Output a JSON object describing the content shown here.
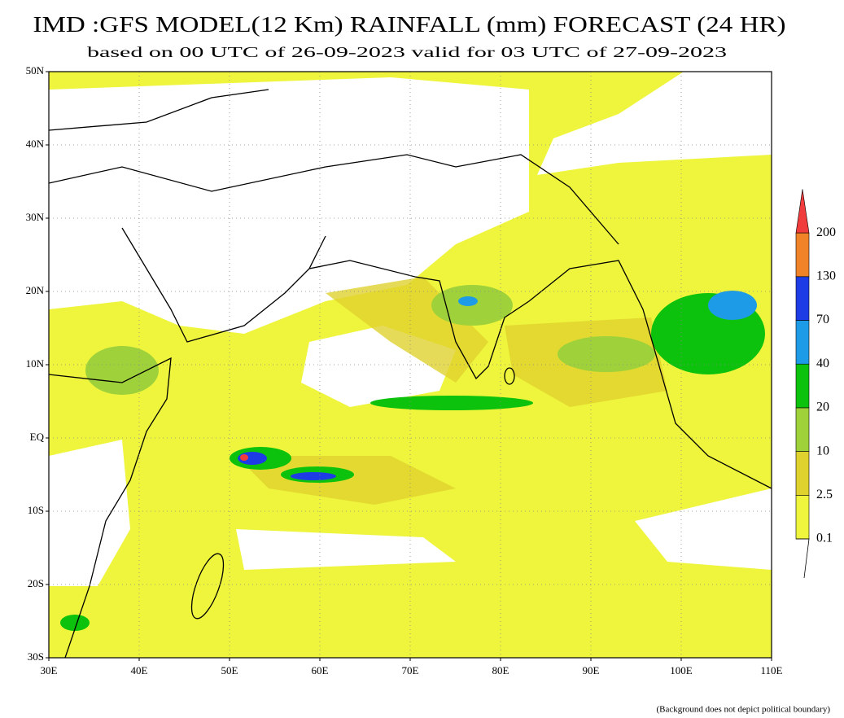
{
  "header": {
    "title": "IMD :GFS MODEL(12 Km) RAINFALL (mm) FORECAST (24 HR)",
    "subtitle": "based on 00 UTC of 26-09-2023 valid for 03 UTC of 27-09-2023"
  },
  "map": {
    "lat_labels": [
      "50N",
      "40N",
      "30N",
      "20N",
      "10N",
      "EQ",
      "10S",
      "20S",
      "30S"
    ],
    "lon_labels": [
      "30E",
      "40E",
      "50E",
      "60E",
      "70E",
      "80E",
      "90E",
      "100E",
      "110E"
    ]
  },
  "legend": {
    "levels": [
      0.1,
      2.5,
      10,
      20,
      40,
      70,
      130,
      200
    ],
    "colors": [
      "#eef53c",
      "#e0d22e",
      "#9fd23a",
      "#0cc20c",
      "#1e9be6",
      "#1e3ce6",
      "#f08228",
      "#f03c3c"
    ]
  },
  "footnote": "(Background does not depict political boundary)"
}
